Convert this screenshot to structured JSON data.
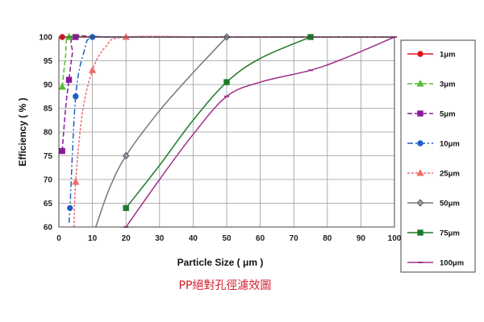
{
  "chart_data": {
    "type": "line",
    "title": "",
    "caption": "PP絕對孔徑濾效圖",
    "xlabel": "Particle Size ( μm )",
    "ylabel": "Efficiency ( % )",
    "xlim": [
      0,
      100
    ],
    "ylim": [
      60,
      100
    ],
    "xticks": [
      "0",
      "10",
      "20",
      "30",
      "40",
      "50",
      "60",
      "70",
      "80",
      "90",
      "100"
    ],
    "yticks": [
      "60",
      "65",
      "70",
      "75",
      "80",
      "85",
      "90",
      "95",
      "100"
    ],
    "grid": true,
    "legend_position": "right",
    "series": [
      {
        "name": "1μm",
        "color": "#e0141e",
        "dash": "",
        "marker": "circle",
        "points": [
          [
            1,
            100
          ],
          [
            10,
            100
          ],
          [
            20,
            100
          ],
          [
            50,
            100
          ],
          [
            75,
            100
          ],
          [
            100,
            100
          ]
        ],
        "markers": [
          [
            1,
            100
          ]
        ]
      },
      {
        "name": "3μm",
        "color": "#55bb33",
        "dash": "6,3",
        "marker": "triangle",
        "points": [
          [
            1,
            89.5
          ],
          [
            2,
            96
          ],
          [
            3,
            100
          ],
          [
            10,
            100
          ],
          [
            20,
            100
          ],
          [
            100,
            100
          ]
        ],
        "markers": [
          [
            1,
            89.5
          ],
          [
            3,
            100
          ]
        ]
      },
      {
        "name": "5μm",
        "color": "#8a1a9b",
        "dash": "6,3",
        "marker": "square",
        "points": [
          [
            1,
            76
          ],
          [
            2,
            85
          ],
          [
            3,
            91
          ],
          [
            4,
            96.5
          ],
          [
            5,
            100
          ],
          [
            20,
            100
          ],
          [
            100,
            100
          ]
        ],
        "markers": [
          [
            1,
            76
          ],
          [
            3,
            91
          ],
          [
            5,
            100
          ]
        ]
      },
      {
        "name": "10μm",
        "color": "#1f5fc2",
        "dash": "7,3,2,3",
        "marker": "circle",
        "points": [
          [
            3,
            61
          ],
          [
            3.3,
            64
          ],
          [
            5,
            87.5
          ],
          [
            7.5,
            97
          ],
          [
            10,
            100
          ],
          [
            20,
            100
          ],
          [
            100,
            100
          ]
        ],
        "markers": [
          [
            3.3,
            64
          ],
          [
            5,
            87.5
          ],
          [
            10,
            100
          ]
        ]
      },
      {
        "name": "25μm",
        "color": "#ef6b6b",
        "dash": "3,2",
        "marker": "triangle",
        "points": [
          [
            4.5,
            60
          ],
          [
            5,
            69.5
          ],
          [
            7,
            84
          ],
          [
            10,
            93
          ],
          [
            14,
            98
          ],
          [
            20,
            100
          ],
          [
            50,
            100
          ],
          [
            100,
            100
          ]
        ],
        "markers": [
          [
            5,
            69.5
          ],
          [
            10,
            93
          ],
          [
            20,
            100
          ]
        ]
      },
      {
        "name": "50μm",
        "color": "#777777",
        "dash": "",
        "marker": "diamond",
        "points": [
          [
            11,
            60
          ],
          [
            15,
            68
          ],
          [
            20,
            75
          ],
          [
            30,
            84.5
          ],
          [
            40,
            92.5
          ],
          [
            50,
            100
          ]
        ],
        "markers": [
          [
            20,
            75
          ],
          [
            50,
            100
          ]
        ]
      },
      {
        "name": "75μm",
        "color": "#1e7a2a",
        "dash": "",
        "marker": "square",
        "points": [
          [
            20,
            64
          ],
          [
            30,
            73
          ],
          [
            40,
            82.5
          ],
          [
            50,
            90.5
          ],
          [
            60,
            95.5
          ],
          [
            75,
            100
          ]
        ],
        "markers": [
          [
            20,
            64
          ],
          [
            50,
            90.5
          ],
          [
            75,
            100
          ]
        ]
      },
      {
        "name": "100μm",
        "color": "#a0308a",
        "dash": "",
        "marker": "dash",
        "points": [
          [
            20,
            60
          ],
          [
            30,
            70
          ],
          [
            40,
            79.5
          ],
          [
            50,
            87.5
          ],
          [
            60,
            90.5
          ],
          [
            75,
            93
          ],
          [
            85,
            95.5
          ],
          [
            100,
            100
          ]
        ],
        "markers": [
          [
            20,
            60
          ],
          [
            50,
            87.5
          ],
          [
            75,
            93
          ],
          [
            100,
            100
          ]
        ]
      }
    ]
  }
}
